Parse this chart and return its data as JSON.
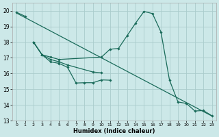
{
  "bg_color": "#cce8e8",
  "grid_color": "#aacccc",
  "line_color": "#1a6b5a",
  "xlim": [
    -0.5,
    23.5
  ],
  "ylim": [
    13.0,
    20.5
  ],
  "yticks": [
    13,
    14,
    15,
    16,
    17,
    18,
    19,
    20
  ],
  "xticks": [
    0,
    1,
    2,
    3,
    4,
    5,
    6,
    7,
    8,
    9,
    10,
    11,
    12,
    13,
    14,
    15,
    16,
    17,
    18,
    19,
    20,
    21,
    22,
    23
  ],
  "xlabel": "Humidex (Indice chaleur)",
  "trend_x": [
    0,
    23
  ],
  "trend_y": [
    19.85,
    13.3
  ],
  "line1_x": [
    0,
    1
  ],
  "line1_y": [
    19.9,
    19.65
  ],
  "line2_x": [
    2,
    3,
    4,
    5,
    6,
    7,
    8,
    9,
    10,
    11
  ],
  "line2_y": [
    18.0,
    17.2,
    16.75,
    16.65,
    16.4,
    15.4,
    15.42,
    15.42,
    15.6,
    15.58
  ],
  "line3_x": [
    2,
    3,
    4,
    5,
    6,
    9,
    10
  ],
  "line3_y": [
    18.0,
    17.2,
    16.9,
    16.75,
    16.55,
    16.1,
    16.05
  ],
  "line4_x": [
    2,
    3,
    4,
    5,
    10,
    11,
    12,
    13,
    14,
    15,
    16,
    17,
    18,
    19,
    20,
    21,
    22,
    23
  ],
  "line4_y": [
    18.0,
    17.2,
    17.05,
    16.9,
    17.05,
    17.55,
    17.6,
    18.4,
    19.2,
    19.95,
    19.82,
    18.65,
    15.6,
    14.2,
    14.1,
    13.62,
    13.65,
    13.32
  ]
}
